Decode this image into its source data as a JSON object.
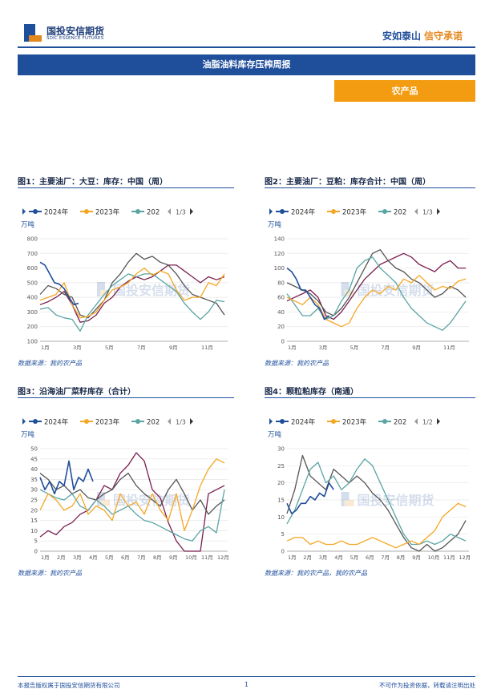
{
  "header": {
    "logo_cn": "国投安信期货",
    "logo_en": "SDIC ESSENCE FUTURES",
    "slogan_1": "安如泰山",
    "slogan_2": "信守承诺",
    "banner": "油脂油料库存压榨周报",
    "section": "农产品"
  },
  "footer": {
    "left": "本报告版权属于国投安信期货有限公司",
    "page": "1",
    "right": "不可作为投资依据，转载请注明出处"
  },
  "colors": {
    "s2024": "#1f4e9b",
    "s2023": "#f5a623",
    "s202": "#5ba4a4",
    "s4": "#555555",
    "s5": "#7a1f4f"
  },
  "chart_data": [
    {
      "type": "line",
      "title": "图1：主要油厂：大豆：库存：中国（周）",
      "unit": "万吨",
      "legend": [
        "2024年",
        "2023年",
        "202"
      ],
      "pager": "1/3",
      "source": "数据来源：我的农产品",
      "ylim": [
        100,
        800
      ],
      "yticks": [
        "100",
        "200",
        "300",
        "400",
        "500",
        "600",
        "700",
        "800"
      ],
      "xticks": [
        "1月",
        "3月",
        "5月",
        "7月",
        "9月",
        "11月"
      ],
      "series": [
        {
          "name": "2024年",
          "x": [
            1,
            1.3,
            1.6,
            1.9,
            2.2,
            2.5,
            2.8,
            3.1,
            3.4
          ],
          "values": [
            640,
            620,
            560,
            500,
            490,
            460,
            400,
            350,
            360
          ]
        },
        {
          "name": "2023年",
          "x": [
            1,
            1.5,
            2,
            2.5,
            3,
            3.5,
            4,
            4.5,
            5,
            5.5,
            6,
            6.5,
            7,
            7.5,
            8,
            8.5,
            9,
            9.5,
            10,
            10.5,
            11,
            11.5,
            12,
            12.5
          ],
          "values": [
            380,
            400,
            420,
            500,
            350,
            260,
            270,
            300,
            380,
            450,
            470,
            500,
            560,
            600,
            550,
            580,
            560,
            450,
            380,
            400,
            400,
            500,
            480,
            560
          ]
        },
        {
          "name": "202",
          "x": [
            1,
            1.5,
            2,
            2.5,
            3,
            3.5,
            4,
            4.5,
            5,
            5.5,
            6,
            6.5,
            7,
            7.5,
            8,
            8.5,
            9,
            9.5,
            10,
            10.5,
            11,
            11.5,
            12,
            12.5
          ],
          "values": [
            320,
            330,
            280,
            260,
            250,
            170,
            280,
            350,
            420,
            480,
            520,
            560,
            540,
            560,
            560,
            520,
            480,
            440,
            360,
            300,
            250,
            300,
            380,
            370
          ]
        },
        {
          "name": "",
          "x": [
            1,
            1.5,
            2,
            2.5,
            3,
            3.5,
            4,
            4.5,
            5,
            5.5,
            6,
            6.5,
            7,
            7.5,
            8,
            8.5,
            9,
            9.5,
            10,
            10.5,
            11,
            11.5,
            12,
            12.5
          ],
          "values": [
            420,
            480,
            460,
            420,
            400,
            280,
            260,
            320,
            380,
            500,
            560,
            640,
            700,
            660,
            680,
            640,
            620,
            560,
            480,
            420,
            400,
            380,
            360,
            280
          ]
        },
        {
          "name": "",
          "x": [
            1,
            1.5,
            2,
            2.5,
            3,
            3.5,
            4,
            4.5,
            5,
            5.5,
            6,
            6.5,
            7,
            7.5,
            8,
            8.5,
            9,
            9.5,
            10,
            10.5,
            11,
            11.5,
            12,
            12.5
          ],
          "values": [
            350,
            370,
            400,
            440,
            350,
            230,
            240,
            280,
            360,
            400,
            470,
            510,
            540,
            520,
            540,
            580,
            620,
            620,
            580,
            540,
            500,
            540,
            520,
            540
          ]
        }
      ]
    },
    {
      "type": "line",
      "title": "图2：主要油厂：豆粕：库存合计：中国（周）",
      "unit": "万吨",
      "legend": [
        "2024年",
        "2023年",
        "202"
      ],
      "pager": "1/3",
      "source": "数据来源：我的农产品",
      "ylim": [
        0,
        140
      ],
      "yticks": [
        "0",
        "20",
        "40",
        "60",
        "80",
        "100",
        "120",
        "140"
      ],
      "xticks": [
        "1月",
        "3月",
        "5月",
        "7月",
        "9月",
        "11月"
      ],
      "series": [
        {
          "name": "2024年",
          "x": [
            1,
            1.3,
            1.6,
            1.9,
            2.2,
            2.5,
            2.8,
            3.1,
            3.4,
            3.7
          ],
          "values": [
            100,
            95,
            85,
            70,
            70,
            60,
            50,
            45,
            30,
            35
          ]
        },
        {
          "name": "2023年",
          "x": [
            1,
            1.5,
            2,
            2.5,
            3,
            3.5,
            4,
            4.5,
            5,
            5.5,
            6,
            6.5,
            7,
            7.5,
            8,
            8.5,
            9,
            9.5,
            10,
            10.5,
            11,
            11.5,
            12,
            12.5
          ],
          "values": [
            60,
            55,
            50,
            60,
            50,
            30,
            25,
            20,
            25,
            45,
            60,
            70,
            65,
            75,
            70,
            85,
            80,
            90,
            80,
            70,
            75,
            72,
            82,
            85
          ]
        },
        {
          "name": "202",
          "x": [
            1,
            1.5,
            2,
            2.5,
            3,
            3.5,
            4,
            4.5,
            5,
            5.5,
            6,
            6.5,
            7,
            7.5,
            8,
            8.5,
            9,
            9.5,
            10,
            10.5,
            11,
            11.5,
            12,
            12.5
          ],
          "values": [
            65,
            50,
            35,
            35,
            45,
            30,
            35,
            55,
            70,
            100,
            110,
            115,
            100,
            90,
            80,
            60,
            45,
            35,
            25,
            20,
            15,
            25,
            40,
            55
          ]
        },
        {
          "name": "",
          "x": [
            1,
            1.5,
            2,
            2.5,
            3,
            3.5,
            4,
            4.5,
            5,
            5.5,
            6,
            6.5,
            7,
            7.5,
            8,
            8.5,
            9,
            9.5,
            10,
            10.5,
            11,
            11.5,
            12,
            12.5
          ],
          "values": [
            80,
            75,
            70,
            65,
            55,
            40,
            35,
            45,
            60,
            80,
            100,
            120,
            125,
            110,
            100,
            95,
            85,
            80,
            70,
            60,
            65,
            75,
            70,
            60
          ]
        },
        {
          "name": "",
          "x": [
            1,
            1.5,
            2,
            2.5,
            3,
            3.5,
            4,
            4.5,
            5,
            5.5,
            6,
            6.5,
            7,
            7.5,
            8,
            8.5,
            9,
            9.5,
            10,
            10.5,
            11,
            11.5,
            12,
            12.5
          ],
          "values": [
            55,
            60,
            65,
            70,
            60,
            35,
            30,
            40,
            55,
            70,
            85,
            95,
            105,
            110,
            115,
            120,
            115,
            105,
            100,
            95,
            105,
            110,
            100,
            100
          ]
        }
      ]
    },
    {
      "type": "line",
      "title": "图3：沿海油厂菜籽库存（合计）",
      "unit": "万吨",
      "legend": [
        "2024年",
        "2023年",
        "202"
      ],
      "pager": "1/3",
      "source": "数据来源：我的农产品",
      "ylim": [
        0,
        50
      ],
      "yticks": [
        "0",
        "5",
        "10",
        "15",
        "20",
        "25",
        "30",
        "35",
        "40",
        "45",
        "50"
      ],
      "xticks": [
        "1月",
        "2月",
        "3月",
        "4月",
        "5月",
        "6月",
        "7月",
        "8月",
        "9月",
        "10月",
        "11月",
        "12月"
      ],
      "series": [
        {
          "name": "2024年",
          "x": [
            1,
            1.3,
            1.6,
            1.9,
            2.2,
            2.5,
            2.8,
            3.1,
            3.4,
            3.7,
            4,
            4.3
          ],
          "values": [
            36,
            30,
            34,
            28,
            34,
            32,
            44,
            30,
            36,
            34,
            40,
            34
          ]
        },
        {
          "name": "2023年",
          "x": [
            1,
            1.5,
            2,
            2.5,
            3,
            3.5,
            4,
            4.5,
            5,
            5.5,
            6,
            6.5,
            7,
            7.5,
            8,
            8.5,
            9,
            9.5,
            10,
            10.5,
            11,
            11.5,
            12,
            12.5
          ],
          "values": [
            20,
            28,
            25,
            20,
            22,
            28,
            18,
            22,
            20,
            15,
            28,
            22,
            24,
            18,
            28,
            20,
            15,
            28,
            10,
            20,
            32,
            40,
            45,
            43
          ]
        },
        {
          "name": "202",
          "x": [
            1,
            1.5,
            2,
            2.5,
            3,
            3.5,
            4,
            4.5,
            5,
            5.5,
            6,
            6.5,
            7,
            7.5,
            8,
            8.5,
            9,
            9.5,
            10,
            10.5,
            11,
            11.5,
            12,
            12.5
          ],
          "values": [
            30,
            28,
            26,
            25,
            28,
            22,
            20,
            25,
            22,
            18,
            20,
            22,
            18,
            15,
            14,
            12,
            10,
            8,
            6,
            5,
            10,
            12,
            9,
            30
          ]
        },
        {
          "name": "",
          "x": [
            1,
            1.5,
            2,
            2.5,
            3,
            3.5,
            4,
            4.5,
            5,
            5.5,
            6,
            6.5,
            7,
            7.5,
            8,
            8.5,
            9,
            9.5,
            10,
            10.5,
            11,
            11.5,
            12,
            12.5
          ],
          "values": [
            38,
            35,
            30,
            32,
            28,
            30,
            26,
            25,
            28,
            30,
            35,
            38,
            32,
            28,
            25,
            22,
            30,
            35,
            28,
            20,
            25,
            18,
            22,
            25
          ]
        },
        {
          "name": "",
          "x": [
            1,
            1.5,
            2,
            2.5,
            3,
            3.5,
            4,
            4.5,
            5,
            5.5,
            6,
            6.5,
            7,
            7.5,
            8,
            8.5,
            9,
            9.5,
            10,
            10.5,
            11,
            11.5,
            12,
            12.5
          ],
          "values": [
            7,
            10,
            8,
            12,
            14,
            18,
            20,
            25,
            32,
            30,
            38,
            42,
            48,
            44,
            30,
            26,
            14,
            5,
            0,
            0,
            0,
            28,
            30,
            32
          ]
        }
      ]
    },
    {
      "type": "line",
      "title": "图4：颗粒粕库存（南通）",
      "unit": "万吨",
      "legend": [
        "2024年",
        "2023年",
        "202"
      ],
      "pager": "1/2",
      "source": "数据来源：我的农产品，我的农产品",
      "ylim": [
        0,
        30
      ],
      "yticks": [
        "0",
        "5",
        "10",
        "15",
        "20",
        "25",
        "30"
      ],
      "xticks": [
        "1月",
        "2月",
        "3月",
        "4月",
        "5月",
        "6月",
        "7月",
        "8月",
        "9月",
        "10月",
        "11月",
        "12月"
      ],
      "series": [
        {
          "name": "2024年",
          "x": [
            1,
            1.3,
            1.6,
            1.9,
            2.2,
            2.5,
            2.8,
            3.1,
            3.4,
            3.7,
            4
          ],
          "values": [
            14,
            11,
            12,
            14,
            14,
            16,
            15,
            17,
            16,
            20,
            18
          ]
        },
        {
          "name": "2023年",
          "x": [
            1,
            1.5,
            2,
            2.5,
            3,
            3.5,
            4,
            4.5,
            5,
            5.5,
            6,
            6.5,
            7,
            7.5,
            8,
            8.5,
            9,
            9.5,
            10,
            10.5,
            11,
            11.5,
            12,
            12.5
          ],
          "values": [
            3,
            4,
            4,
            2,
            3,
            2,
            2,
            3,
            2,
            2,
            3,
            4,
            3,
            2,
            1,
            2,
            3,
            2,
            4,
            6,
            10,
            12,
            14,
            13
          ]
        },
        {
          "name": "202",
          "x": [
            1,
            1.5,
            2,
            2.5,
            3,
            3.5,
            4,
            4.5,
            5,
            5.5,
            6,
            6.5,
            7,
            7.5,
            8,
            8.5,
            9,
            9.5,
            10,
            10.5,
            11,
            11.5,
            12,
            12.5
          ],
          "values": [
            8,
            12,
            18,
            24,
            26,
            20,
            22,
            18,
            20,
            24,
            27,
            25,
            20,
            15,
            10,
            5,
            2,
            2,
            3,
            2,
            3,
            5,
            4,
            3
          ]
        },
        {
          "name": "",
          "x": [
            1,
            1.5,
            2,
            2.5,
            3,
            3.5,
            4,
            4.5,
            5,
            5.5,
            6,
            6.5,
            7,
            7.5,
            8,
            8.5,
            9,
            9.5,
            10,
            10.5,
            11,
            11.5,
            12,
            12.5
          ],
          "values": [
            11,
            18,
            28,
            22,
            20,
            18,
            24,
            22,
            20,
            22,
            20,
            17,
            15,
            12,
            8,
            4,
            1,
            0,
            2,
            0,
            1,
            3,
            5,
            9
          ]
        }
      ]
    }
  ]
}
